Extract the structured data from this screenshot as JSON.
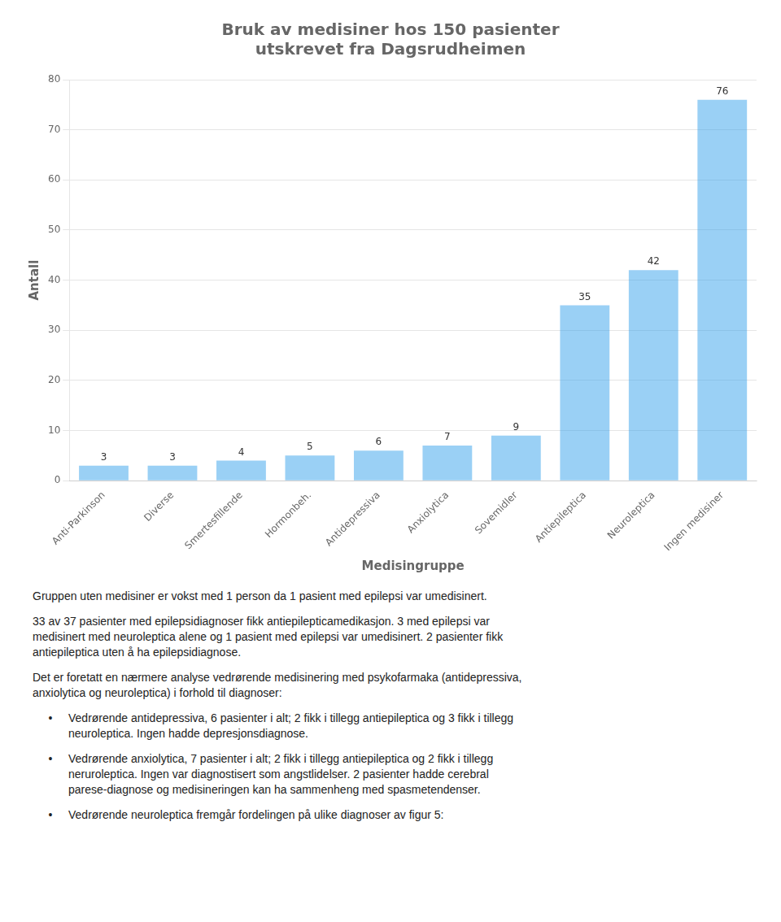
{
  "chart_data": {
    "type": "bar",
    "title": [
      "Bruk av medisiner hos 150 pasienter",
      "utskrevet fra Dagsrudheimen"
    ],
    "xlabel": "Medisingruppe",
    "ylabel": "Antall",
    "categories": [
      "Anti-Parkinson",
      "Diverse",
      "Smertesfillende",
      "Hormonbeh.",
      "Antidepressiva",
      "Anxiolytica",
      "Sovemidler",
      "Antiepileptica",
      "Neuroleptica",
      "Ingen medisiner"
    ],
    "values": [
      3,
      3,
      4,
      5,
      6,
      7,
      9,
      35,
      42,
      76
    ],
    "ylim": [
      0,
      80
    ],
    "yticks": [
      0,
      10,
      20,
      30,
      40,
      50,
      60,
      70,
      80
    ],
    "grid": true,
    "data_labels": true,
    "annotations": [
      "Gruppen uten medisiner er vokst med 1 person da 1 pasient med epilepsi var umedisinert.",
      "33 av 37 pasienter med epilepsidiagnoser fikk antiepilepticamedikasjon. 3 med epilepsi var\nmedisinert med neuroleptica alene og 1 pasient med epilepsi var umedisinert. 2 pasienter fikk\nantiepileptica uten å ha epilepsidiagnose.",
      "Det er foretatt en nærmere analyse vedrørende medisinering med psykofarmaka (antidepressiva,\nanxiolytica og neuroleptica) i forhold til diagnoser:",
      "• Vedrørende antidepressiva, 6 pasienter i alt; 2 fikk i tillegg antiepileptica og 3 fikk i tillegg\nneuroleptica. Ingen hadde depresjonsdiagnose.",
      "• Vedrørende anxiolytica, 7 pasienter i alt; 2 fikk i tillegg antiepileptica og 2 fikk i tillegg\nneruroleptica. Ingen var diagnostisert som angstlidelser. 2 pasienter hadde cerebral\nparese-diagnose og medisineringen kan ha sammenheng med spasmetendenser.",
      "• Vedrørende neuroleptica fremgår fordelingen på ulike diagnoser av figur 5:"
    ]
  }
}
